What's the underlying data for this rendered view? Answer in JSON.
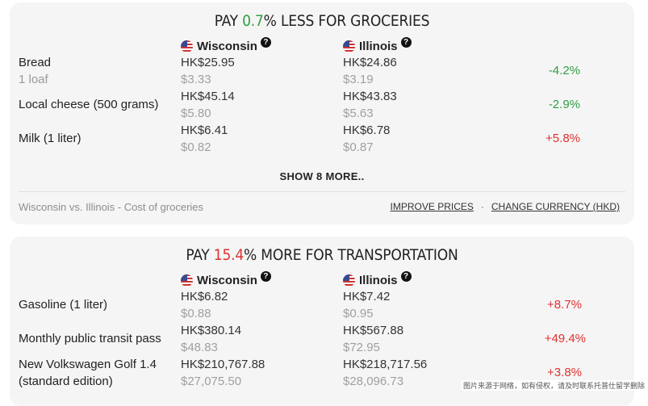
{
  "groceries": {
    "title_prefix": "PAY ",
    "title_pct": "0.7",
    "title_suffix": "% LESS FOR GROCERIES",
    "state_a": "Wisconsin",
    "state_b": "Illinois",
    "help_glyph": "?",
    "rows": [
      {
        "label": "Bread",
        "sublabel": "1 loaf",
        "a_local": "HK$25.95",
        "a_usd": "$3.33",
        "b_local": "HK$24.86",
        "b_usd": "$3.19",
        "diff": "-4.2%"
      },
      {
        "label": "Local cheese (500 grams)",
        "sublabel": "",
        "a_local": "HK$45.14",
        "a_usd": "$5.80",
        "b_local": "HK$43.83",
        "b_usd": "$5.63",
        "diff": "-2.9%"
      },
      {
        "label": "Milk (1 liter)",
        "sublabel": "",
        "a_local": "HK$6.41",
        "a_usd": "$0.82",
        "b_local": "HK$6.78",
        "b_usd": "$0.87",
        "diff": "+5.8%"
      }
    ],
    "show_more": "SHOW 8 MORE..",
    "footer_text": "Wisconsin vs. Illinois - Cost of groceries",
    "improve_prices": "IMPROVE PRICES",
    "separator": "·",
    "change_currency": "CHANGE CURRENCY (HKD)"
  },
  "transportation": {
    "title_prefix": "PAY ",
    "title_pct": "15.4",
    "title_suffix": "% MORE FOR TRANSPORTATION",
    "state_a": "Wisconsin",
    "state_b": "Illinois",
    "help_glyph": "?",
    "rows": [
      {
        "label": "Gasoline (1 liter)",
        "label2": "",
        "a_local": "HK$6.82",
        "a_usd": "$0.88",
        "b_local": "HK$7.42",
        "b_usd": "$0.95",
        "diff": "+8.7%"
      },
      {
        "label": "Monthly public transit pass",
        "label2": "",
        "a_local": "HK$380.14",
        "a_usd": "$48.83",
        "b_local": "HK$567.88",
        "b_usd": "$72.95",
        "diff": "+49.4%"
      },
      {
        "label": "New Volkswagen Golf 1.4",
        "label2": "(standard edition)",
        "a_local": "HK$210,767.88",
        "a_usd": "$27,075.50",
        "b_local": "HK$218,717.56",
        "b_usd": "$28,096.73",
        "diff": "+3.8%"
      }
    ]
  },
  "watermark": "图片来源于网络，如有侵权，请及时联系托普仕留学删除",
  "colors": {
    "good": "#2f9e44",
    "bad": "#e03131",
    "card_bg": "#f5f5f5"
  },
  "icons": {
    "flag": "us-flag-icon",
    "help": "question-circle-icon"
  }
}
